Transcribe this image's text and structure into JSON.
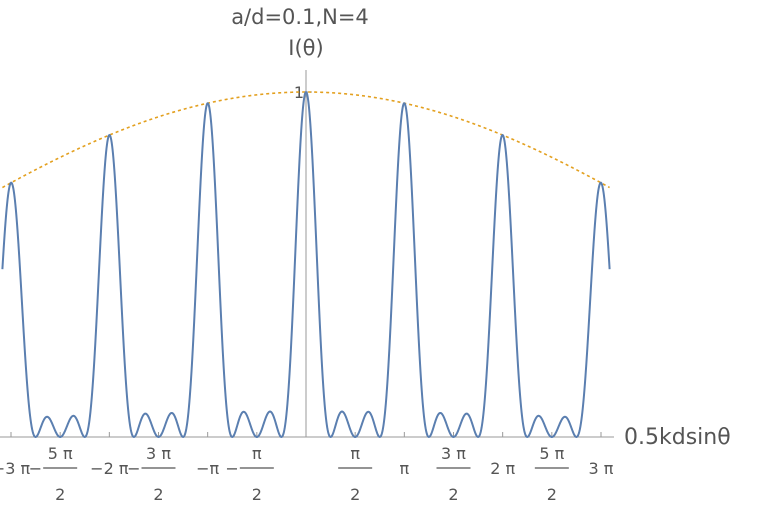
{
  "chart_data": {
    "type": "line",
    "title": "a/d=0.1,N=4",
    "ylabel": "I(θ)",
    "xlabel": "0.5kdsinθ",
    "xlim": [
      -9.87,
      9.87
    ],
    "ylim": [
      0,
      1
    ],
    "y_ticks": [
      {
        "value": 1,
        "label": "1"
      }
    ],
    "x_ticks": [
      {
        "value": -9.4248,
        "whole": "−3 π",
        "num": "",
        "den": "",
        "sign": ""
      },
      {
        "value": -7.854,
        "whole": "",
        "num": "5 π",
        "den": "2",
        "sign": "−"
      },
      {
        "value": -6.2832,
        "whole": "−2 π",
        "num": "",
        "den": "",
        "sign": ""
      },
      {
        "value": -4.7124,
        "whole": "",
        "num": "3 π",
        "den": "2",
        "sign": "−"
      },
      {
        "value": -3.1416,
        "whole": "−π",
        "num": "",
        "den": "",
        "sign": ""
      },
      {
        "value": -1.5708,
        "whole": "",
        "num": "π",
        "den": "2",
        "sign": "−"
      },
      {
        "value": 1.5708,
        "whole": "",
        "num": "π",
        "den": "2",
        "sign": ""
      },
      {
        "value": 3.1416,
        "whole": "π",
        "num": "",
        "den": "",
        "sign": ""
      },
      {
        "value": 4.7124,
        "whole": "",
        "num": "3 π",
        "den": "2",
        "sign": ""
      },
      {
        "value": 6.2832,
        "whole": "2 π",
        "num": "",
        "den": "",
        "sign": ""
      },
      {
        "value": 7.854,
        "whole": "",
        "num": "5 π",
        "den": "2",
        "sign": ""
      },
      {
        "value": 9.4248,
        "whole": "3 π",
        "num": "",
        "den": "",
        "sign": ""
      }
    ],
    "a_over_d": 0.1,
    "N": 4,
    "x_range": [
      -9.7,
      9.7
    ],
    "series": [
      {
        "kind": "intensity",
        "color": "#5b7fb0",
        "dashed": false
      },
      {
        "kind": "envelope",
        "color": "#e3a01f",
        "dashed": true
      }
    ],
    "grid": false
  }
}
